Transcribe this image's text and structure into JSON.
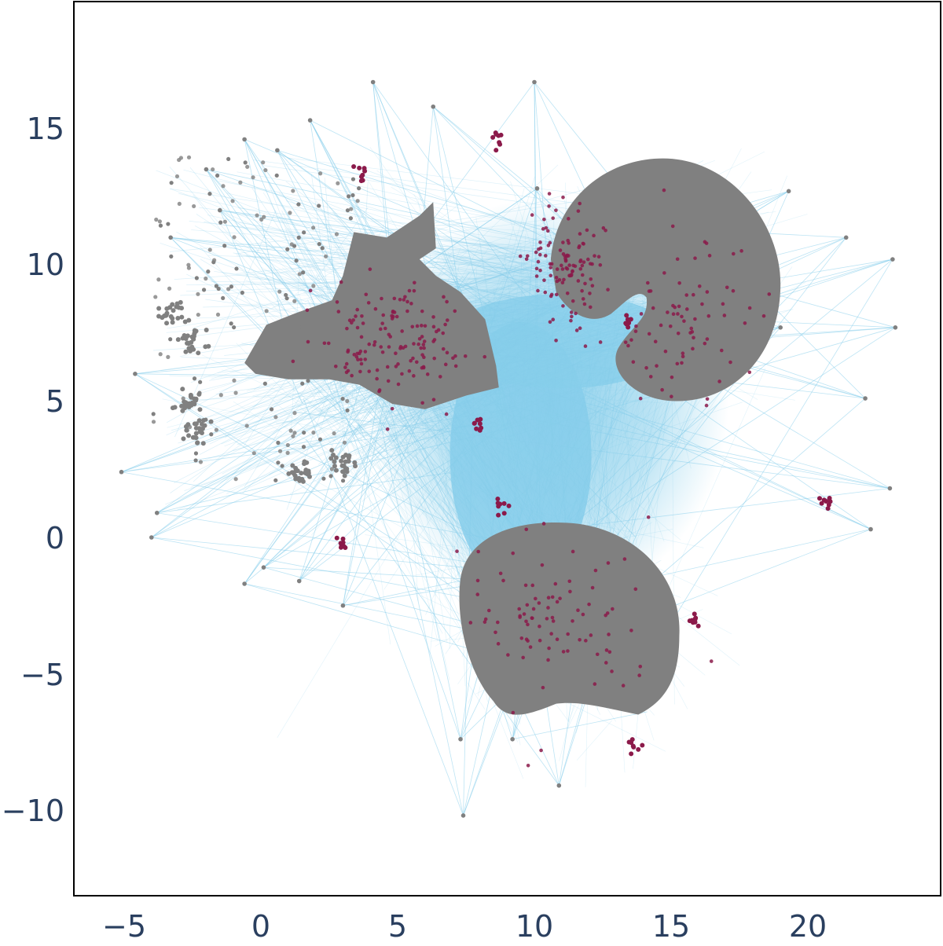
{
  "chart_data": {
    "type": "scatter",
    "subtype": "umap-embedding-with-edges",
    "title": "",
    "xlabel": "",
    "ylabel": "",
    "xlim": [
      -6.9,
      24.8
    ],
    "ylim": [
      -13.0,
      19.7
    ],
    "grid": false,
    "legend": null,
    "x_ticks": [
      -5,
      0,
      5,
      10,
      15,
      20
    ],
    "x_tick_labels": [
      "−5",
      "0",
      "5",
      "10",
      "15",
      "20"
    ],
    "y_ticks": [
      15,
      10,
      5,
      0,
      -5,
      -10
    ],
    "y_tick_labels": [
      "15",
      "10",
      "5",
      "0",
      "−5",
      "−10"
    ],
    "colors": {
      "edges": "#87ceeb",
      "points": "#808080",
      "highlight": "#8b1a4a",
      "axis_text": "#2a3f5f",
      "frame": "#000000"
    },
    "series": [
      {
        "name": "edges",
        "kind": "line-segments",
        "color": "#87ceeb",
        "description": "Dense light-blue connection lines between points"
      },
      {
        "name": "points",
        "kind": "scatter",
        "color": "#808080",
        "clusters": [
          {
            "label": "left-cluster",
            "center": [
              5.0,
              7.0
            ],
            "approx_extent_x": [
              -0.5,
              8.8
            ],
            "approx_extent_y": [
              4.6,
              12.3
            ]
          },
          {
            "label": "upper-right-crescent",
            "center": [
              15.0,
              9.5
            ],
            "approx_extent_x": [
              10.5,
              19.0
            ],
            "approx_extent_y": [
              5.0,
              13.9
            ]
          },
          {
            "label": "bottom-cluster",
            "center": [
              11.5,
              -3.5
            ],
            "approx_extent_x": [
              7.2,
              15.3
            ],
            "approx_extent_y": [
              -6.5,
              0.6
            ]
          }
        ],
        "outliers": [
          [
            -5.1,
            2.4
          ],
          [
            -4.6,
            6.0
          ],
          [
            -4.0,
            0.0
          ],
          [
            -3.8,
            0.9
          ],
          [
            -3.3,
            11.0
          ],
          [
            -2.0,
            13.5
          ],
          [
            -1.5,
            12.0
          ],
          [
            -0.6,
            -1.7
          ],
          [
            -0.6,
            14.6
          ],
          [
            0.1,
            -1.1
          ],
          [
            0.6,
            14.2
          ],
          [
            1.4,
            -1.6
          ],
          [
            1.8,
            15.3
          ],
          [
            3.0,
            -2.5
          ],
          [
            4.1,
            16.7
          ],
          [
            6.3,
            15.8
          ],
          [
            10.0,
            16.7
          ],
          [
            10.1,
            12.8
          ],
          [
            19.3,
            12.7
          ],
          [
            21.4,
            11.0
          ],
          [
            23.1,
            10.2
          ],
          [
            23.2,
            7.7
          ],
          [
            19.0,
            7.7
          ],
          [
            22.1,
            5.1
          ],
          [
            23.0,
            1.8
          ],
          [
            22.3,
            0.3
          ],
          [
            7.3,
            -7.4
          ],
          [
            9.2,
            -7.4
          ],
          [
            10.9,
            -9.1
          ],
          [
            7.4,
            -10.2
          ]
        ]
      },
      {
        "name": "highlighted",
        "kind": "scatter",
        "color": "#8b1a4a",
        "description": "Sparse crimson points concentrated in left cluster center, upper-left lobe of crescent, and small satellite groups",
        "notable_groups": [
          [
            8.7,
            14.7
          ],
          [
            3.6,
            13.4
          ],
          [
            20.6,
            1.3
          ],
          [
            2.9,
            -0.2
          ],
          [
            13.6,
            -7.6
          ],
          [
            8.8,
            1.2
          ],
          [
            15.8,
            -3.0
          ],
          [
            7.9,
            4.2
          ],
          [
            13.4,
            7.9
          ]
        ]
      }
    ]
  }
}
